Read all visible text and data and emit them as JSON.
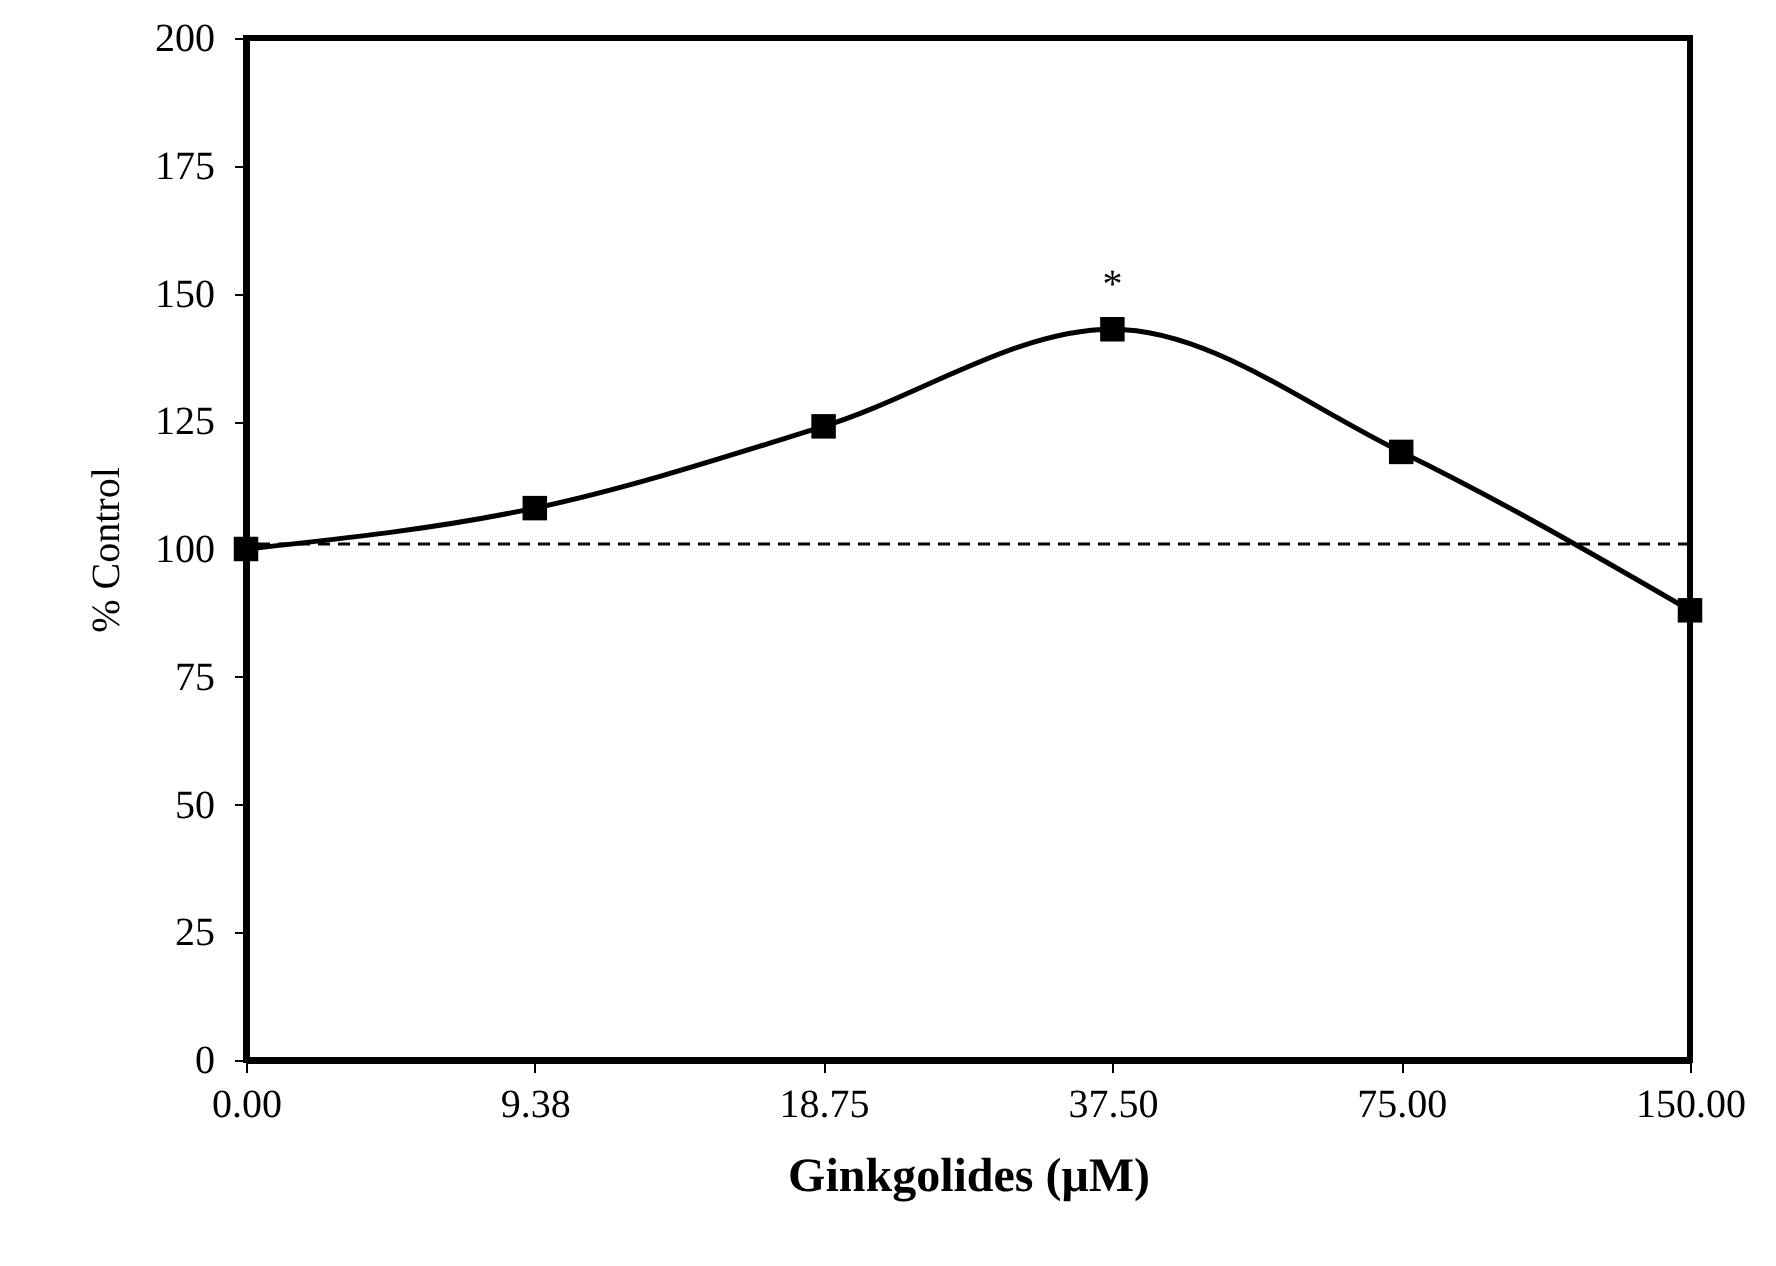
{
  "chart_data": {
    "type": "line",
    "xlabel": "Ginkgolides (μM)",
    "ylabel": "% Control",
    "categories": [
      "0.00",
      "9.38",
      "18.75",
      "37.50",
      "75.00",
      "150.00"
    ],
    "series": [
      {
        "color": "#000000",
        "values": [
          100,
          108,
          124,
          143,
          119,
          88
        ]
      }
    ],
    "ylim": [
      0,
      200
    ],
    "yticks": [
      0,
      25,
      50,
      75,
      100,
      125,
      150,
      175,
      200
    ],
    "ref_lines": [
      {
        "axis": "y",
        "value": 101,
        "color": "#000000",
        "line_style": "dashed"
      }
    ],
    "annotations": [
      {
        "text": "*",
        "x": "37.50",
        "y": 143
      }
    ],
    "marker": "square",
    "line_style": "solid",
    "grid": false
  }
}
